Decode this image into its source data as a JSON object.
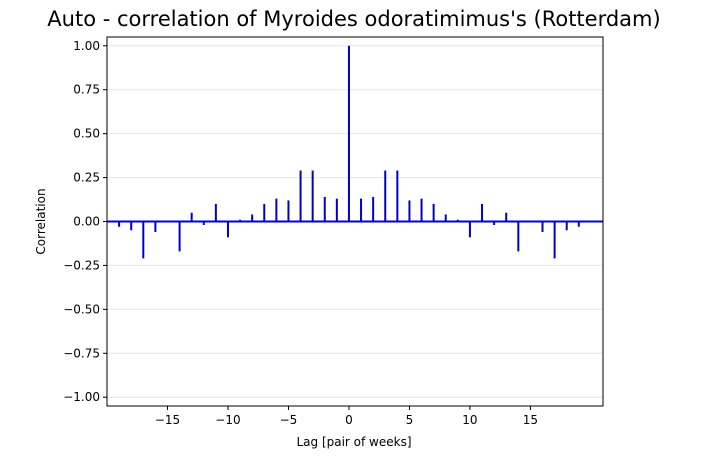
{
  "chart_data": {
    "type": "bar",
    "title": "Auto - correlation of Myroides odoratimimus's (Rotterdam)",
    "xlabel": "Lag [pair of weeks]",
    "ylabel": "Correlation",
    "xlim": [
      -20,
      21
    ],
    "ylim": [
      -1.05,
      1.05
    ],
    "xticks": [
      -15,
      -10,
      -5,
      0,
      5,
      10,
      15
    ],
    "xtick_labels": [
      "−15",
      "−10",
      "−5",
      "0",
      "5",
      "10",
      "15"
    ],
    "yticks": [
      -1.0,
      -0.75,
      -0.5,
      -0.25,
      0.0,
      0.25,
      0.5,
      0.75,
      1.0
    ],
    "ytick_labels": [
      "−1.00",
      "−0.75",
      "−0.50",
      "−0.25",
      "0.00",
      "0.25",
      "0.50",
      "0.75",
      "1.00"
    ],
    "grid": "horizontal",
    "colors": {
      "bars": "#0000cd",
      "zero_line": "#0000cd",
      "grid": "#e6e6e6"
    },
    "lags": [
      -19,
      -18,
      -17,
      -16,
      -15,
      -14,
      -13,
      -12,
      -11,
      -10,
      -9,
      -8,
      -7,
      -6,
      -5,
      -4,
      -3,
      -2,
      -1,
      0,
      1,
      2,
      3,
      4,
      5,
      6,
      7,
      8,
      9,
      10,
      11,
      12,
      13,
      14,
      15,
      16,
      17,
      18,
      19
    ],
    "values": [
      -0.03,
      -0.05,
      -0.21,
      -0.06,
      0.0,
      -0.17,
      0.05,
      -0.02,
      0.1,
      -0.09,
      0.01,
      0.04,
      0.1,
      0.13,
      0.12,
      0.29,
      0.29,
      0.14,
      0.13,
      1.0,
      0.13,
      0.14,
      0.29,
      0.29,
      0.12,
      0.13,
      0.1,
      0.04,
      0.01,
      -0.09,
      0.1,
      -0.02,
      0.05,
      -0.17,
      0.0,
      -0.06,
      -0.21,
      -0.05,
      -0.03
    ]
  }
}
